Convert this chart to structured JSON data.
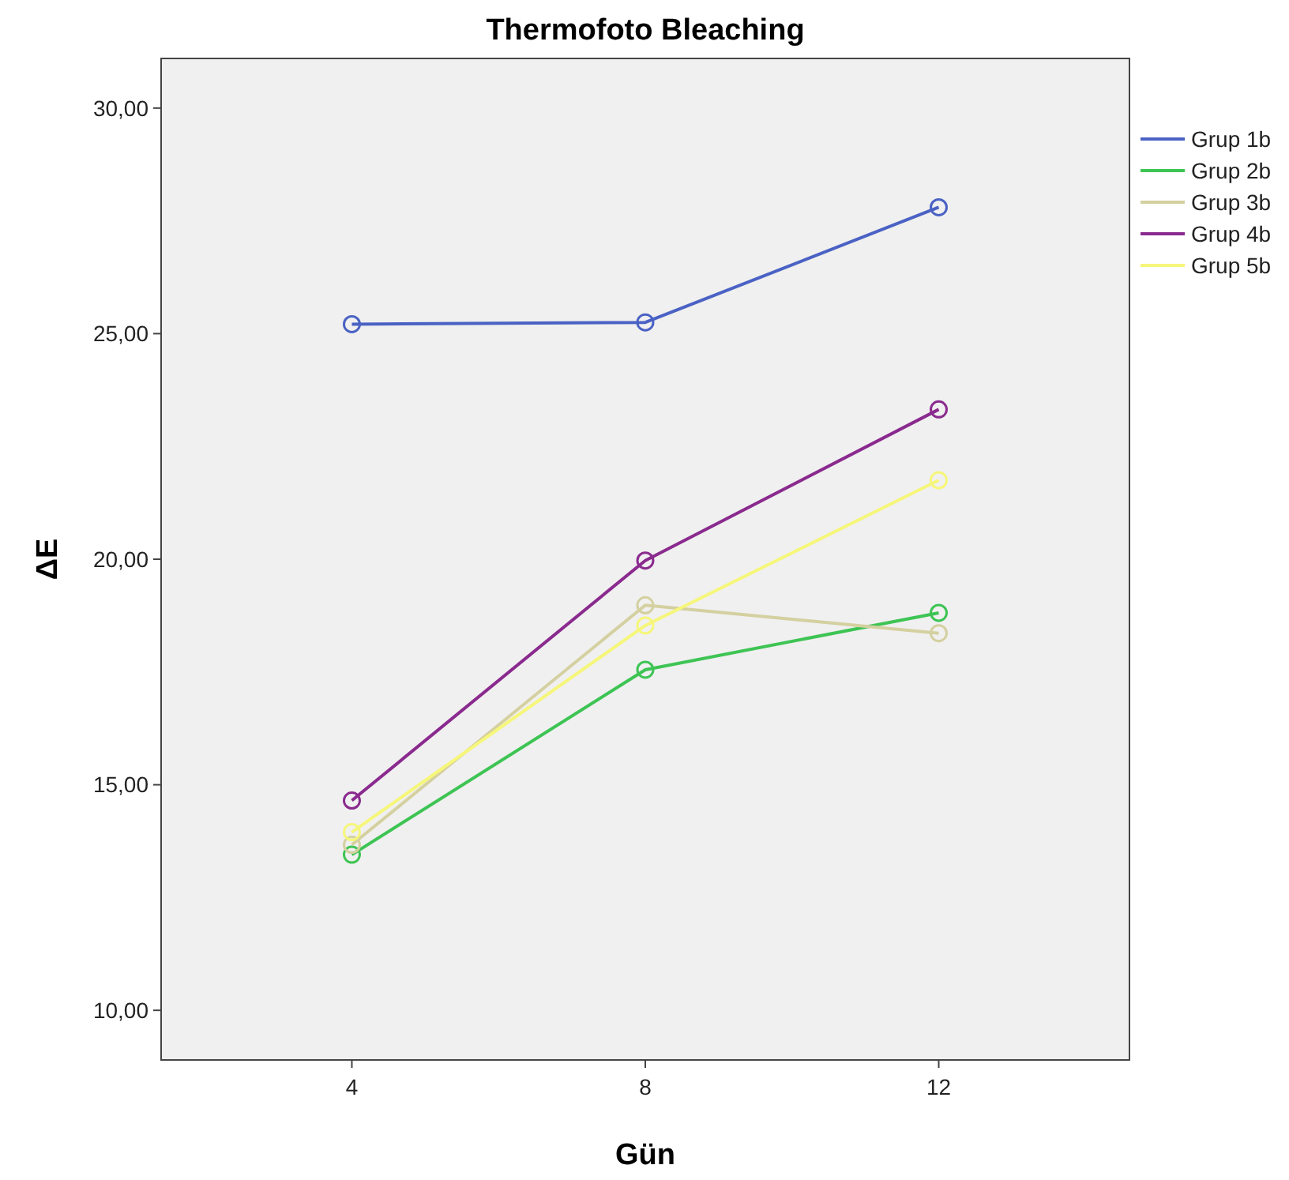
{
  "chart_data": {
    "type": "line",
    "title": "Thermofoto Bleaching",
    "xlabel": "Gün",
    "ylabel": "ΔE",
    "x": [
      4,
      8,
      12
    ],
    "xlim": [
      1.4,
      14.6
    ],
    "xticks": [
      4,
      8,
      12
    ],
    "ylim": [
      8.9,
      31.1
    ],
    "yticks": [
      {
        "value": 10,
        "label": "10,00"
      },
      {
        "value": 15,
        "label": "15,00"
      },
      {
        "value": 20,
        "label": "20,00"
      },
      {
        "value": 25,
        "label": "25,00"
      },
      {
        "value": 30,
        "label": "30,00"
      }
    ],
    "grid": false,
    "legend": "top right",
    "marker": "circle",
    "line_style": "solid",
    "series": [
      {
        "name": "Grup 1b",
        "color": "#4a62c4",
        "values": [
          25.21,
          25.25,
          27.8
        ]
      },
      {
        "name": "Grup 2b",
        "color": "#3ec454",
        "values": [
          13.45,
          17.55,
          18.81
        ]
      },
      {
        "name": "Grup 3b",
        "color": "#d4d0a0",
        "values": [
          13.67,
          18.98,
          18.36
        ]
      },
      {
        "name": "Grup 4b",
        "color": "#8a2a8e",
        "values": [
          14.65,
          19.97,
          23.32
        ]
      },
      {
        "name": "Grup 5b",
        "color": "#f6f67a",
        "values": [
          13.95,
          18.53,
          21.75
        ]
      }
    ]
  }
}
